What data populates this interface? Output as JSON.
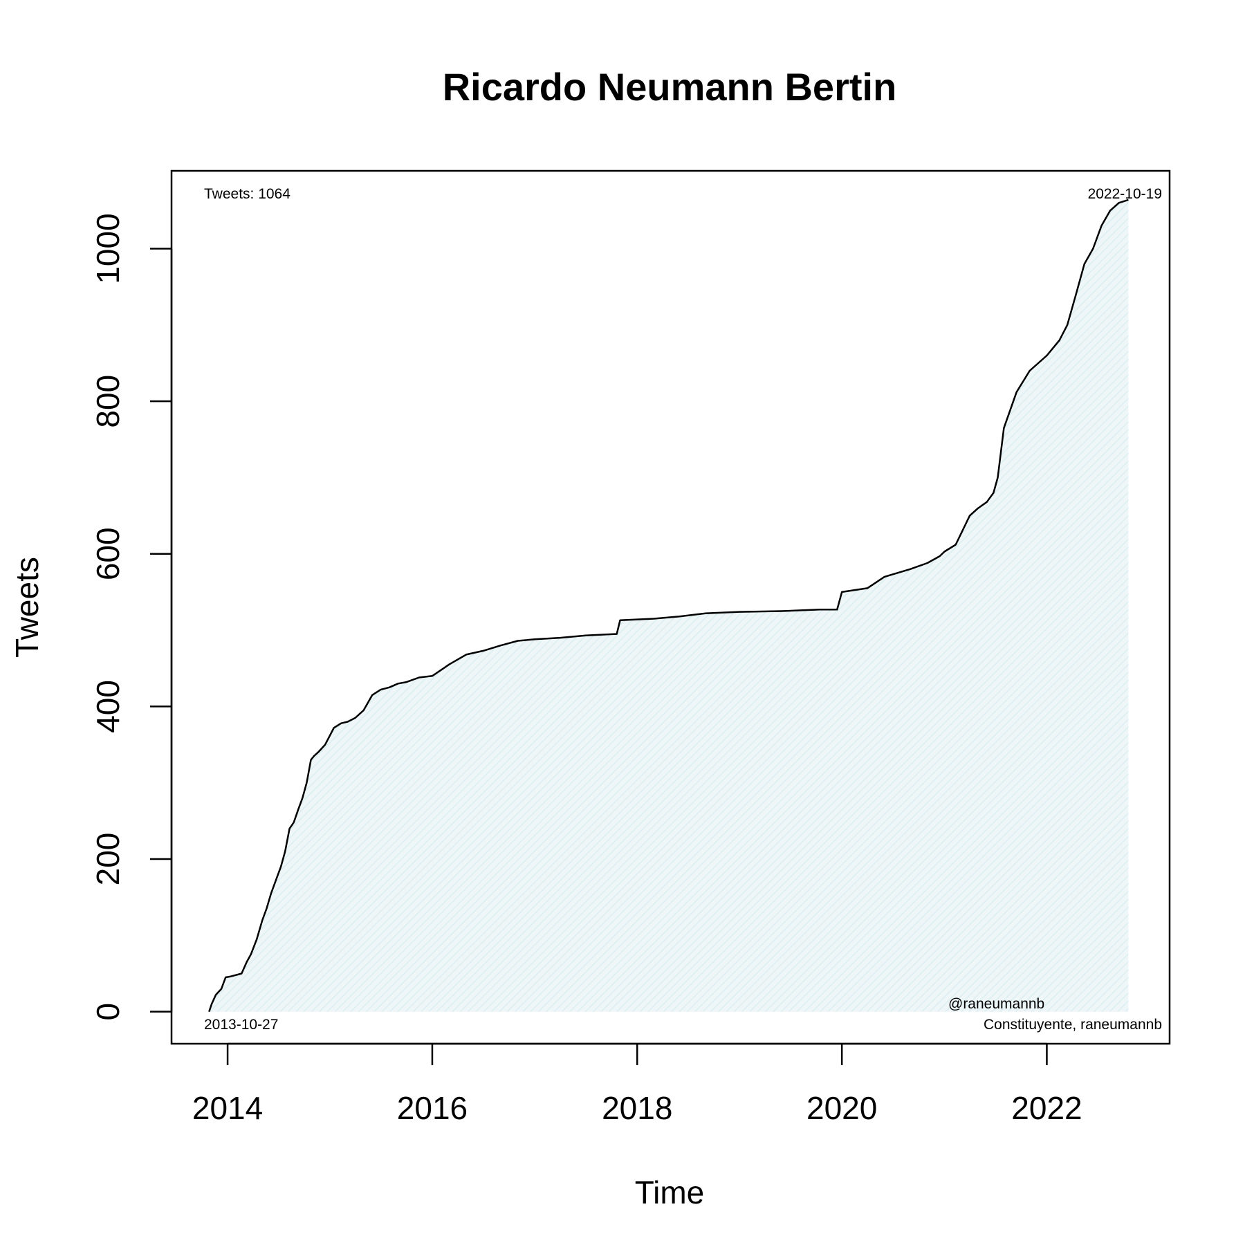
{
  "chart_data": {
    "type": "area",
    "title": "Ricardo Neumann Bertin",
    "xlabel": "Time",
    "ylabel": "Tweets",
    "x_axis_type": "date",
    "xlim": [
      "2013-06-15",
      "2023-03-15"
    ],
    "ylim": [
      -42,
      1102
    ],
    "x_ticks": [
      {
        "value": "2014-01-01",
        "label": "2014"
      },
      {
        "value": "2016-01-01",
        "label": "2016"
      },
      {
        "value": "2018-01-01",
        "label": "2018"
      },
      {
        "value": "2020-01-01",
        "label": "2020"
      },
      {
        "value": "2022-01-01",
        "label": "2022"
      }
    ],
    "y_ticks": [
      {
        "value": 0,
        "label": "0"
      },
      {
        "value": 200,
        "label": "200"
      },
      {
        "value": 400,
        "label": "400"
      },
      {
        "value": 600,
        "label": "600"
      },
      {
        "value": 800,
        "label": "800"
      },
      {
        "value": 1000,
        "label": "1000"
      }
    ],
    "grid": false,
    "fill_color": "#e8f3f6",
    "line_color": "#000000",
    "annotations": {
      "top_left": "Tweets: 1064",
      "top_right": "2022-10-19",
      "bottom_left": "2013-10-27",
      "bottom_right_line1": "@raneumannb",
      "bottom_right_line2": "Constituyente, raneumannb"
    },
    "series": [
      {
        "x": [
          "2013-10-27",
          "2013-11-05",
          "2013-11-20",
          "2013-12-10",
          "2013-12-25",
          "2014-01-10",
          "2014-02-20",
          "2014-03-10",
          "2014-03-25",
          "2014-04-15",
          "2014-05-05",
          "2014-05-20",
          "2014-06-05",
          "2014-06-25",
          "2014-07-10",
          "2014-07-25",
          "2014-08-10",
          "2014-08-25",
          "2014-09-10",
          "2014-09-25",
          "2014-10-10",
          "2014-10-25",
          "2014-11-05",
          "2014-11-20",
          "2014-12-15",
          "2015-01-15",
          "2015-02-10",
          "2015-03-05",
          "2015-04-01",
          "2015-05-01",
          "2015-06-01",
          "2015-07-01",
          "2015-08-01",
          "2015-09-01",
          "2015-10-01",
          "2015-11-15",
          "2016-01-01",
          "2016-03-01",
          "2016-05-01",
          "2016-07-01",
          "2016-09-01",
          "2016-11-01",
          "2017-01-01",
          "2017-04-01",
          "2017-07-01",
          "2017-10-20",
          "2017-11-01",
          "2018-03-01",
          "2018-06-01",
          "2018-09-01",
          "2019-01-01",
          "2019-06-01",
          "2019-10-15",
          "2019-12-15",
          "2020-01-01",
          "2020-04-01",
          "2020-06-01",
          "2020-09-01",
          "2020-11-01",
          "2020-12-15",
          "2021-01-01",
          "2021-02-10",
          "2021-04-01",
          "2021-05-01",
          "2021-06-01",
          "2021-06-25",
          "2021-07-10",
          "2021-08-01",
          "2021-09-15",
          "2021-11-01",
          "2022-01-01",
          "2022-02-15",
          "2022-03-15",
          "2022-04-15",
          "2022-05-15",
          "2022-06-15",
          "2022-07-15",
          "2022-08-15",
          "2022-09-15",
          "2022-10-19"
        ],
        "y": [
          0,
          10,
          22,
          30,
          45,
          46,
          50,
          65,
          75,
          95,
          120,
          135,
          155,
          175,
          190,
          210,
          240,
          248,
          265,
          280,
          300,
          330,
          335,
          340,
          350,
          372,
          378,
          380,
          385,
          395,
          415,
          422,
          425,
          430,
          432,
          438,
          440,
          455,
          468,
          473,
          480,
          486,
          488,
          490,
          493,
          495,
          513,
          515,
          518,
          522,
          524,
          525,
          527,
          527,
          550,
          555,
          570,
          580,
          588,
          597,
          603,
          612,
          650,
          660,
          668,
          680,
          700,
          765,
          812,
          840,
          860,
          880,
          900,
          940,
          980,
          1000,
          1030,
          1050,
          1060,
          1064
        ]
      }
    ]
  }
}
